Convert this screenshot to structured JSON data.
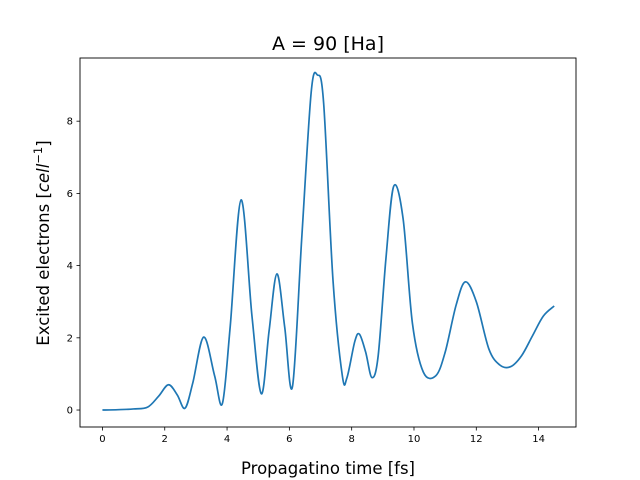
{
  "chart_data": {
    "type": "line",
    "title": "A = 90 [Ha]",
    "xlabel": "Propagatino time [fs]",
    "ylabel_main": "Excited electrons  [",
    "ylabel_unit_base": "cell",
    "ylabel_unit_exp": "−1",
    "ylabel_close": "]",
    "xlim": [
      -0.72,
      15.2
    ],
    "ylim": [
      -0.47,
      9.75
    ],
    "xticks": [
      0,
      2,
      4,
      6,
      8,
      10,
      12,
      14
    ],
    "yticks": [
      0,
      2,
      4,
      6,
      8
    ],
    "xtick_labels": [
      "0",
      "2",
      "4",
      "6",
      "8",
      "10",
      "12",
      "14"
    ],
    "ytick_labels": [
      "0",
      "2",
      "4",
      "6",
      "8"
    ],
    "grid": false,
    "line_color": "#1f77b4",
    "series": [
      {
        "x": [
          0,
          0.5,
          1.0,
          1.45,
          1.8,
          2.12,
          2.4,
          2.65,
          2.9,
          3.25,
          3.6,
          3.85,
          4.1,
          4.45,
          4.8,
          5.1,
          5.35,
          5.6,
          5.85,
          6.1,
          6.4,
          6.7,
          6.9,
          7.1,
          7.4,
          7.7,
          7.85,
          8.1,
          8.25,
          8.45,
          8.65,
          8.85,
          9.1,
          9.35,
          9.65,
          9.95,
          10.3,
          10.7,
          11.0,
          11.35,
          11.65,
          12.0,
          12.4,
          12.75,
          13.1,
          13.45,
          13.8,
          14.15,
          14.5
        ],
        "y": [
          0,
          0.01,
          0.03,
          0.08,
          0.38,
          0.7,
          0.42,
          0.05,
          0.75,
          2.02,
          0.95,
          0.18,
          2.3,
          5.82,
          2.6,
          0.45,
          2.2,
          3.77,
          2.3,
          0.65,
          4.8,
          8.8,
          9.28,
          8.5,
          3.6,
          0.95,
          0.9,
          1.9,
          2.1,
          1.6,
          0.9,
          1.5,
          4.2,
          6.2,
          5.3,
          2.4,
          1.05,
          0.95,
          1.6,
          2.9,
          3.55,
          3.0,
          1.7,
          1.25,
          1.2,
          1.5,
          2.05,
          2.6,
          2.88
        ]
      }
    ]
  }
}
